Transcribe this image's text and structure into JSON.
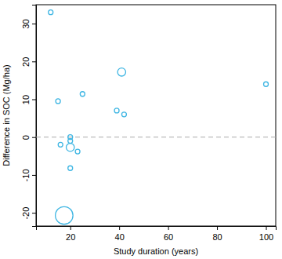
{
  "chart_data": {
    "type": "scatter",
    "x_label": "Study duration (years)",
    "y_label": "Difference in SOC (Mg/ha)",
    "x": [
      12,
      15,
      16,
      17.5,
      20,
      20,
      20,
      20,
      23,
      25,
      39,
      41,
      42,
      100
    ],
    "y": [
      33,
      9.5,
      -2,
      -20.7,
      0,
      -1,
      -2.7,
      -8.2,
      -3.8,
      11.4,
      7,
      17.2,
      6,
      14
    ],
    "sizes": [
      1,
      1,
      1,
      14,
      1,
      1,
      3,
      1,
      1,
      1,
      1,
      3,
      1,
      1
    ],
    "color": "#3fb6e3",
    "marker": "open-circle",
    "hline": 0,
    "xlim": [
      6,
      104
    ],
    "ylim": [
      -23.5,
      35
    ],
    "xticks": [
      20,
      40,
      60,
      80,
      100
    ],
    "yticks": [
      -20,
      -10,
      0,
      10,
      20,
      30
    ]
  }
}
